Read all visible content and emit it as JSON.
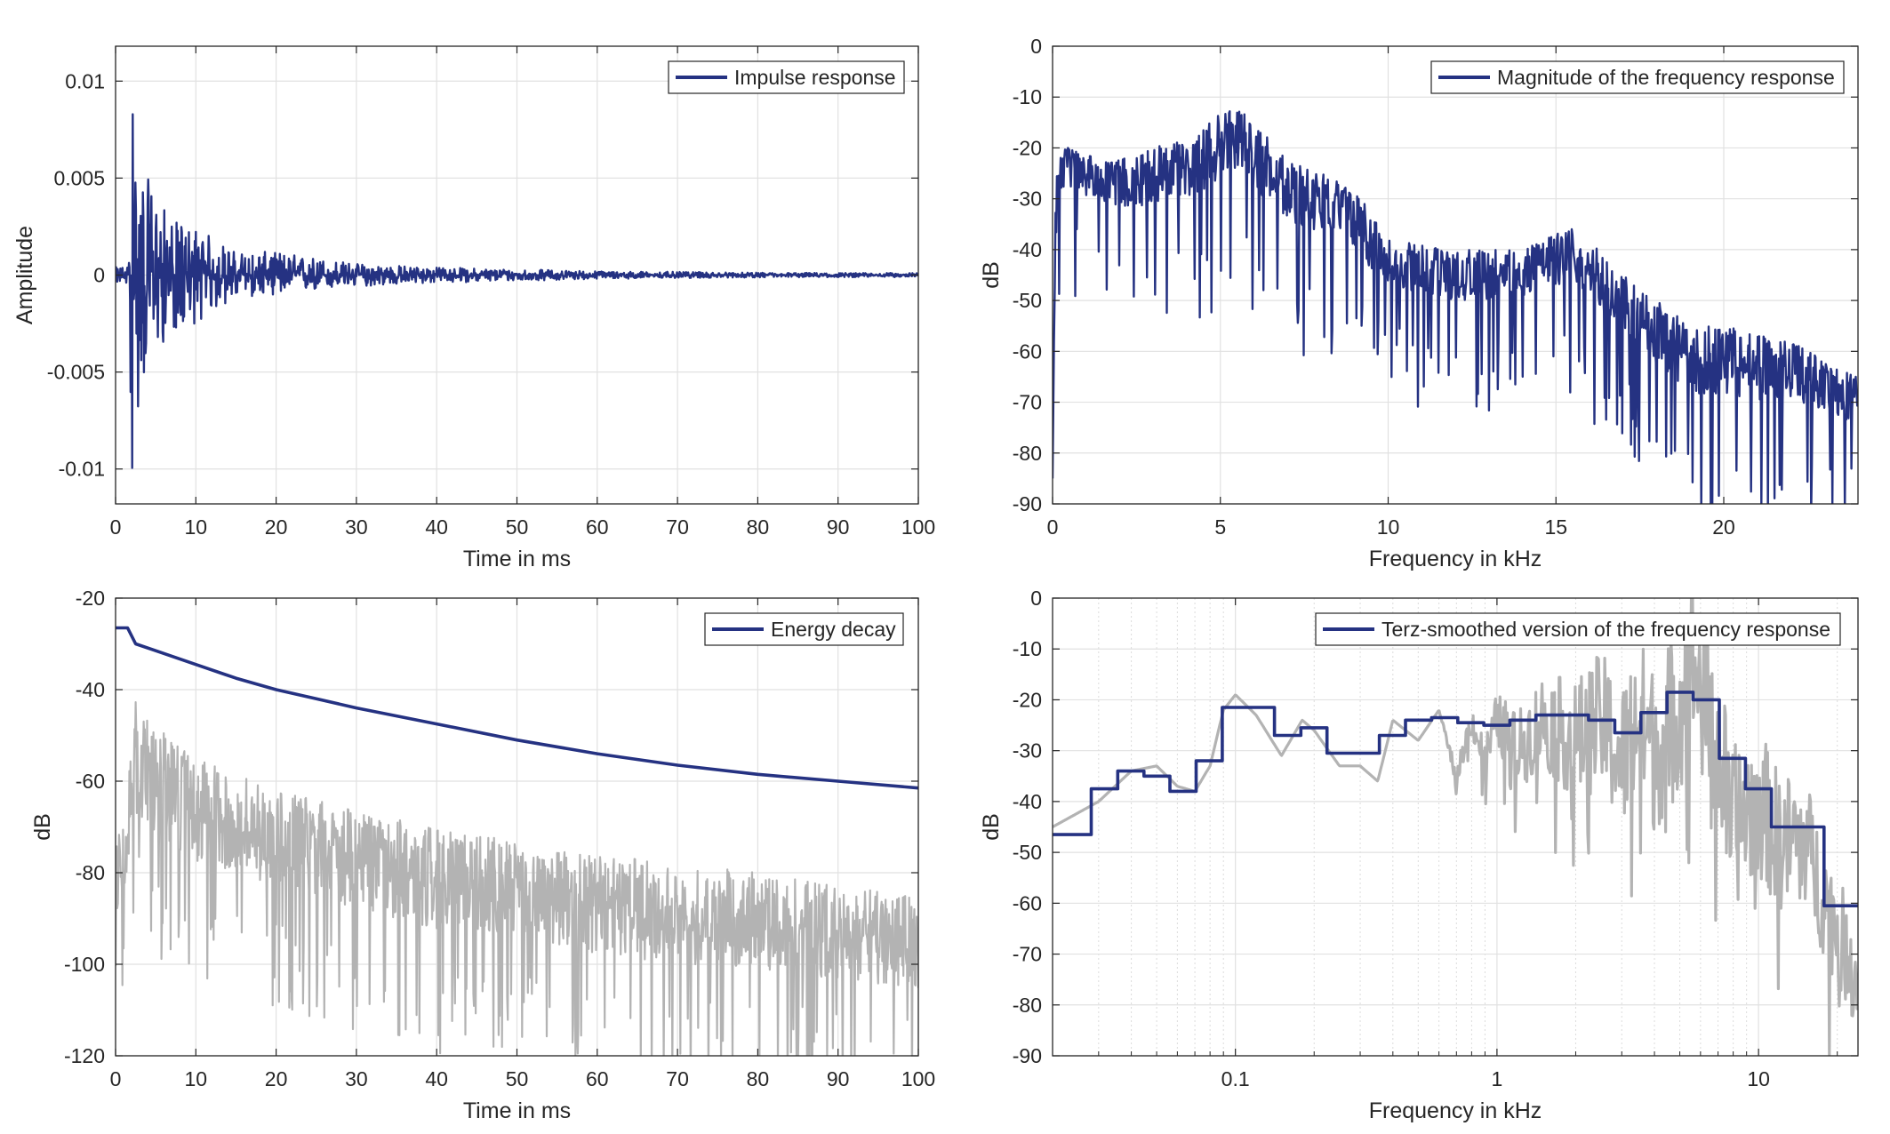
{
  "colors": {
    "series": "#253282",
    "gray": "#b3b3b3",
    "grid": "#e1e1e1",
    "axis": "#262626"
  },
  "chart_data": [
    {
      "id": "impulse",
      "type": "line",
      "legend": [
        "Impulse response"
      ],
      "legend_position": "top-right",
      "xlabel": "Time in ms",
      "ylabel": "Amplitude",
      "xscale": "linear",
      "xlim": [
        0,
        100
      ],
      "ylim": [
        -0.0118,
        0.0118
      ],
      "grid": true,
      "xticks": [
        0,
        10,
        20,
        30,
        40,
        50,
        60,
        70,
        80,
        90,
        100
      ],
      "xtick_labels": [
        "0",
        "10",
        "20",
        "30",
        "40",
        "50",
        "60",
        "70",
        "80",
        "90",
        "100"
      ],
      "yticks": [
        -0.01,
        -0.005,
        0,
        0.005,
        0.01
      ],
      "ytick_labels": [
        "-0.01",
        "-0.005",
        "0",
        "0.005",
        "0.01"
      ],
      "series": [
        {
          "name": "Impulse response",
          "color": "#253282",
          "envelope": {
            "x": [
              0,
              1.5,
              2.1,
              2.5,
              4,
              7,
              10,
              15,
              20,
              30,
              40,
              50,
              60,
              80,
              100
            ],
            "y_max": [
              0.0004,
              0.0005,
              0.0085,
              0.006,
              0.005,
              0.0028,
              0.0025,
              0.0012,
              0.0012,
              0.0006,
              0.0004,
              0.0003,
              0.0002,
              0.00012,
              0.0001
            ],
            "y_min": [
              -0.0004,
              -0.0005,
              -0.0105,
              -0.008,
              -0.0045,
              -0.003,
              -0.0025,
              -0.0012,
              -0.001,
              -0.0006,
              -0.0004,
              -0.0003,
              -0.0002,
              -0.00012,
              -0.0001
            ]
          }
        }
      ]
    },
    {
      "id": "magnitude",
      "type": "line",
      "legend": [
        "Magnitude of the frequency response"
      ],
      "legend_position": "top-right",
      "xlabel": "Frequency in kHz",
      "ylabel": "dB",
      "xscale": "linear",
      "xlim": [
        0,
        24
      ],
      "ylim": [
        -90,
        0
      ],
      "grid": true,
      "xticks": [
        0,
        5,
        10,
        15,
        20
      ],
      "xtick_labels": [
        "0",
        "5",
        "10",
        "15",
        "20"
      ],
      "yticks": [
        -90,
        -80,
        -70,
        -60,
        -50,
        -40,
        -30,
        -20,
        -10,
        0
      ],
      "ytick_labels": [
        "-90",
        "-80",
        "-70",
        "-60",
        "-50",
        "-40",
        "-30",
        "-20",
        "-10",
        "0"
      ],
      "series": [
        {
          "name": "Magnitude of the frequency response",
          "color": "#253282",
          "envelope": {
            "x": [
              0,
              0.1,
              0.5,
              2,
              4,
              5.5,
              7,
              9,
              10,
              12,
              14,
              15.5,
              17,
              19,
              20,
              22,
              24
            ],
            "y_top": [
              -85,
              -20,
              -20,
              -22,
              -18,
              -11,
              -22,
              -28,
              -38,
              -40,
              -40,
              -35,
              -45,
              -55,
              -55,
              -58,
              -65
            ],
            "y_base": [
              -85,
              -35,
              -35,
              -40,
              -40,
              -35,
              -45,
              -50,
              -55,
              -58,
              -58,
              -55,
              -65,
              -80,
              -80,
              -80,
              -82
            ]
          }
        }
      ]
    },
    {
      "id": "energy",
      "type": "line",
      "legend": [
        "Energy decay"
      ],
      "legend_position": "top-right",
      "xlabel": "Time in ms",
      "ylabel": "dB",
      "xscale": "linear",
      "xlim": [
        0,
        100
      ],
      "ylim": [
        -120,
        -20
      ],
      "grid": true,
      "xticks": [
        0,
        10,
        20,
        30,
        40,
        50,
        60,
        70,
        80,
        90,
        100
      ],
      "xtick_labels": [
        "0",
        "10",
        "20",
        "30",
        "40",
        "50",
        "60",
        "70",
        "80",
        "90",
        "100"
      ],
      "yticks": [
        -120,
        -100,
        -80,
        -60,
        -40,
        -20
      ],
      "ytick_labels": [
        "-120",
        "-100",
        "-80",
        "-60",
        "-40",
        "-20"
      ],
      "series": [
        {
          "name": "Energy decay",
          "color": "#253282",
          "x": [
            0,
            1.5,
            2.5,
            5,
            10,
            15,
            20,
            25,
            30,
            40,
            50,
            60,
            70,
            80,
            90,
            100
          ],
          "y": [
            -26.5,
            -26.5,
            -30,
            -31.5,
            -34.5,
            -37.5,
            -40,
            -42,
            -44,
            -47.5,
            -51,
            -54,
            -56.5,
            -58.5,
            -60,
            -61.5
          ]
        },
        {
          "color": "#b3b3b3",
          "envelope": {
            "x": [
              0,
              1.5,
              2,
              5,
              10,
              20,
              30,
              40,
              50,
              60,
              70,
              80,
              90,
              100
            ],
            "y_top": [
              -70,
              -65,
              -40,
              -48,
              -55,
              -62,
              -66,
              -70,
              -73,
              -76,
              -78,
              -80,
              -83,
              -85
            ],
            "y_base": [
              -95,
              -90,
              -75,
              -80,
              -85,
              -90,
              -95,
              -100,
              -102,
              -105,
              -107,
              -108,
              -110,
              -112
            ]
          }
        }
      ]
    },
    {
      "id": "terz",
      "type": "line",
      "legend": [
        "Terz-smoothed version of the frequency response"
      ],
      "legend_position": "top-right",
      "xlabel": "Frequency in kHz",
      "ylabel": "dB",
      "xscale": "log",
      "xlim": [
        0.02,
        24
      ],
      "ylim": [
        -90,
        0
      ],
      "grid": true,
      "xticks": [
        0.1,
        1,
        10
      ],
      "xtick_labels": [
        "0.1",
        "1",
        "10"
      ],
      "minor_xticks": [
        0.03,
        0.04,
        0.05,
        0.06,
        0.07,
        0.08,
        0.09,
        0.2,
        0.3,
        0.4,
        0.5,
        0.6,
        0.7,
        0.8,
        0.9,
        2,
        3,
        4,
        5,
        6,
        7,
        8,
        9,
        20
      ],
      "yticks": [
        -90,
        -80,
        -70,
        -60,
        -50,
        -40,
        -30,
        -20,
        -10,
        0
      ],
      "ytick_labels": [
        "-90",
        "-80",
        "-70",
        "-60",
        "-50",
        "-40",
        "-30",
        "-20",
        "-10",
        "0"
      ],
      "series": [
        {
          "color": "#b3b3b3",
          "x": [
            0.02,
            0.03,
            0.04,
            0.05,
            0.06,
            0.07,
            0.08,
            0.09,
            0.1,
            0.12,
            0.15,
            0.18,
            0.2,
            0.25,
            0.3,
            0.35,
            0.4,
            0.5,
            0.6,
            0.7,
            0.8,
            0.9,
            1,
            1.2,
            1.5,
            2,
            2.5,
            3,
            3.5,
            4,
            5,
            5.5,
            6,
            7,
            8,
            10,
            12,
            15,
            18,
            20,
            24
          ],
          "y": [
            -45,
            -40,
            -34,
            -33,
            -37,
            -38,
            -33,
            -22,
            -19,
            -23,
            -31,
            -24,
            -26,
            -33,
            -33,
            -36,
            -24,
            -28,
            -22,
            -35,
            -24,
            -32,
            -24,
            -30,
            -24,
            -28,
            -24,
            -32,
            -23,
            -30,
            -21,
            -10,
            -18,
            -30,
            -45,
            -40,
            -48,
            -47,
            -60,
            -65,
            -75
          ],
          "noise_from": 0.6,
          "noise_amp": [
            0,
            8,
            14,
            18,
            14,
            10
          ]
        },
        {
          "name": "Terz-smoothed version of the frequency response",
          "color": "#253282",
          "step_edges": [
            0.02,
            0.0281,
            0.0355,
            0.0447,
            0.0562,
            0.0708,
            0.0891,
            0.141,
            0.178,
            0.224,
            0.355,
            0.447,
            0.562,
            0.708,
            0.891,
            1.12,
            1.41,
            2.24,
            2.82,
            3.55,
            4.47,
            5.62,
            7.08,
            8.91,
            11.2,
            17.8,
            24
          ],
          "step_values": [
            -46.5,
            -37.5,
            -34,
            -35,
            -38,
            -32,
            -21.5,
            -27,
            -25.5,
            -30.5,
            -27,
            -24,
            -23.5,
            -24.5,
            -25,
            -24,
            -23,
            -24,
            -26.5,
            -22.5,
            -18.5,
            -20,
            -31.5,
            -37.5,
            -45,
            -60.5
          ]
        }
      ]
    }
  ]
}
